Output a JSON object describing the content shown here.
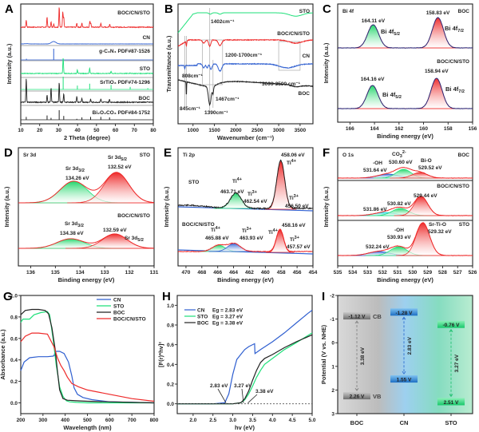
{
  "figure": {
    "panels": [
      "A",
      "B",
      "C",
      "D",
      "E",
      "F",
      "G",
      "H",
      "I"
    ]
  },
  "colors": {
    "red": "#ee2a2a",
    "blue": "#2f5fd0",
    "green": "#1fe07a",
    "black": "#222222",
    "gray": "#9a9a9a"
  },
  "chart_data": [
    {
      "panel": "A",
      "type": "line",
      "title": "",
      "xlabel": "2 Theta (degree)",
      "ylabel": "Intensity (a.u.)",
      "xlim": [
        10,
        80
      ],
      "xticks": [
        "10",
        "20",
        "30",
        "40",
        "50",
        "60",
        "70",
        "80"
      ],
      "series": [
        {
          "name": "BOC/CN/STO",
          "color": "#ee2a2a",
          "peaks": [
            [
              12.9,
              0.35
            ],
            [
              23.9,
              0.5
            ],
            [
              26.0,
              0.25
            ],
            [
              27.4,
              0.15
            ],
            [
              30.3,
              1.0
            ],
            [
              32.2,
              0.75
            ],
            [
              32.7,
              0.5
            ],
            [
              39.6,
              0.2
            ],
            [
              42.3,
              0.2
            ],
            [
              46.5,
              0.3
            ],
            [
              47.0,
              0.2
            ],
            [
              52.3,
              0.2
            ],
            [
              57.0,
              0.15
            ]
          ]
        },
        {
          "name": "CN",
          "color": "#2f5fd0",
          "peaks": [
            [
              27.4,
              0.5
            ],
            [
              13.1,
              0.05
            ]
          ]
        },
        {
          "name": "g-C3N4 PDF#87-1526",
          "color": "#2f5fd0",
          "sticks": [
            [
              13.0,
              0.1
            ],
            [
              27.4,
              1.0
            ]
          ]
        },
        {
          "name": "STO",
          "color": "#1fe07a",
          "peaks": [
            [
              32.4,
              1.0
            ],
            [
              39.9,
              0.25
            ],
            [
              46.4,
              0.35
            ],
            [
              57.7,
              0.15
            ],
            [
              67.8,
              0.05
            ],
            [
              77.1,
              0.03
            ]
          ]
        },
        {
          "name": "SrTiO3 PDF#74-1296",
          "color": "#1fe07a",
          "sticks": [
            [
              32.4,
              1.0
            ],
            [
              39.9,
              0.3
            ],
            [
              46.4,
              0.45
            ],
            [
              57.7,
              0.35
            ],
            [
              67.8,
              0.2
            ],
            [
              77.1,
              0.1
            ]
          ]
        },
        {
          "name": "BOC",
          "color": "#222222",
          "peaks": [
            [
              12.9,
              1.0
            ],
            [
              23.9,
              0.3
            ],
            [
              26.0,
              0.6
            ],
            [
              30.3,
              0.85
            ],
            [
              32.7,
              0.35
            ],
            [
              39.6,
              0.25
            ],
            [
              42.3,
              0.15
            ],
            [
              46.9,
              0.12
            ],
            [
              52.3,
              0.15
            ],
            [
              56.9,
              0.12
            ]
          ]
        },
        {
          "name": "Bi2O2CO3 PDF#84-1752",
          "color": "#222222",
          "sticks": [
            [
              12.9,
              0.3
            ],
            [
              23.9,
              0.45
            ],
            [
              26.0,
              0.2
            ],
            [
              30.3,
              1.0
            ],
            [
              32.7,
              0.4
            ],
            [
              39.6,
              0.1
            ],
            [
              42.3,
              0.25
            ],
            [
              46.9,
              0.3
            ],
            [
              52.3,
              0.3
            ],
            [
              56.9,
              0.25
            ]
          ]
        }
      ],
      "labels": {
        "boc_cn_sto": "BOC/CN/STO",
        "cn": "CN",
        "gc3n4_pdf": "g-C₃N₄ PDF#87-1526",
        "sto": "STO",
        "srtio3_pdf": "SrTiO₃ PDF#74-1296",
        "boc": "BOC",
        "bi2o2co3_pdf": "Bi₂O₂CO₃ PDF#84-1752"
      }
    },
    {
      "panel": "B",
      "type": "line",
      "xlabel": "Wavenumber (cm⁻¹)",
      "ylabel": "Transmittance (a.u.)",
      "xlim": [
        650,
        3800
      ],
      "xticks": [
        "1000",
        "1500",
        "2000",
        "2500",
        "3000",
        "3500"
      ],
      "xtick_values": [
        1000,
        1500,
        2000,
        2500,
        3000,
        3500
      ],
      "series": [
        {
          "name": "STO",
          "color": "#1fe07a"
        },
        {
          "name": "BOC/CN/STO",
          "color": "#ee2a2a"
        },
        {
          "name": "CN",
          "color": "#2f5fd0"
        },
        {
          "name": "BOC",
          "color": "#222222"
        }
      ],
      "annotations": {
        "a1402": "1402cm⁻¹",
        "a1200_1700": "1200-1700cm⁻¹",
        "a808": "808cm⁻¹",
        "a3000_3500": "3000-3500 cm⁻¹",
        "a1467": "1467cm⁻¹",
        "a845": "845cm⁻¹",
        "a1390": "1390cm⁻¹"
      }
    },
    {
      "panel": "C",
      "type": "line",
      "title": "Bi 4f",
      "xlabel": "Binding energy (eV)",
      "ylabel": "Intensity (a.u.)",
      "xlim": [
        167,
        156
      ],
      "xticks": [
        "166",
        "164",
        "162",
        "160",
        "158",
        "156"
      ],
      "xtick_values": [
        166,
        164,
        162,
        160,
        158,
        156
      ],
      "samples": [
        {
          "name": "BOC",
          "peaks": [
            {
              "label": "Bi 4f5/2",
              "energy": 164.11,
              "text": "164.11 eV",
              "fill": "green"
            },
            {
              "label": "Bi 4f7/2",
              "energy": 158.83,
              "text": "158.83 eV",
              "fill": "red"
            }
          ]
        },
        {
          "name": "BOC/CN/STO",
          "peaks": [
            {
              "label": "Bi 4f5/2",
              "energy": 164.16,
              "text": "164.16 eV",
              "fill": "green"
            },
            {
              "label": "Bi 4f7/2",
              "energy": 158.94,
              "text": "158.94 eV",
              "fill": "red"
            }
          ]
        }
      ]
    },
    {
      "panel": "D",
      "type": "line",
      "title": "Sr 3d",
      "xlabel": "Binding energy (eV)",
      "ylabel": "Intensity (a.u.)",
      "xlim": [
        136.5,
        131
      ],
      "xticks": [
        "136",
        "135",
        "134",
        "133",
        "132",
        "131"
      ],
      "xtick_values": [
        136,
        135,
        134,
        133,
        132,
        131
      ],
      "samples": [
        {
          "name": "STO",
          "peaks": [
            {
              "label": "Sr 3d3/2",
              "energy": 134.26,
              "text": "134.26 eV",
              "fill": "green"
            },
            {
              "label": "Sr 3d5/2",
              "energy": 132.52,
              "text": "132.52 eV",
              "fill": "red"
            }
          ]
        },
        {
          "name": "BOC/CN/STO",
          "peaks": [
            {
              "label": "Sr 3d3/2",
              "energy": 134.38,
              "text": "134.38 eV",
              "fill": "green"
            },
            {
              "label": "Sr 3d5/2",
              "energy": 132.59,
              "text": "132.59 eV",
              "fill": "red"
            }
          ]
        }
      ]
    },
    {
      "panel": "E",
      "type": "line",
      "title": "Ti 2p",
      "xlabel": "Binding energy (eV)",
      "ylabel": "Intensity (a.u.)",
      "xlim": [
        471,
        454
      ],
      "xticks": [
        "470",
        "468",
        "466",
        "464",
        "462",
        "460",
        "458",
        "456",
        "454"
      ],
      "xtick_values": [
        470,
        468,
        466,
        464,
        462,
        460,
        458,
        456,
        454
      ],
      "samples": [
        {
          "name": "STO",
          "peaks": [
            {
              "label": "Ti4+",
              "energy": 463.71,
              "text": "463.71 eV"
            },
            {
              "label": "Ti3+",
              "energy": 462.54,
              "text": "462.54 eV"
            },
            {
              "label": "Ti4+",
              "energy": 458.06,
              "text": "458.06 eV"
            },
            {
              "label": "Ti3+",
              "energy": 456.5,
              "text": "456.50 eV"
            }
          ]
        },
        {
          "name": "BOC/CN/STO",
          "peaks": [
            {
              "label": "Ti4+",
              "energy": 465.88,
              "text": "465.88 eV"
            },
            {
              "label": "Ti3+",
              "energy": 463.93,
              "text": "463.93 eV"
            },
            {
              "label": "Ti4+",
              "energy": 458.16,
              "text": "458.16 eV"
            },
            {
              "label": "Ti3+",
              "energy": 457.57,
              "text": "457.57 eV"
            }
          ]
        }
      ]
    },
    {
      "panel": "F",
      "type": "line",
      "title": "O 1s",
      "xlabel": "Binding energy (eV)",
      "ylabel": "Intensity (a.u.)",
      "xlim": [
        535,
        526
      ],
      "xticks": [
        "535",
        "534",
        "533",
        "532",
        "531",
        "530",
        "529",
        "528",
        "527",
        "526"
      ],
      "xtick_values": [
        535,
        534,
        533,
        532,
        531,
        530,
        529,
        528,
        527,
        526
      ],
      "samples": [
        {
          "name": "BOC",
          "peaks": [
            {
              "label": "-OH",
              "energy": 531.64,
              "text": "531.64 eV"
            },
            {
              "label": "CO3 2-",
              "energy": 530.6,
              "text": "530.60 eV"
            },
            {
              "label": "Bi-O",
              "energy": 529.52,
              "text": "529.52 eV"
            }
          ]
        },
        {
          "name": "BOC/CN/STO",
          "peaks": [
            {
              "label": "",
              "energy": 531.86,
              "text": "531.86 eV"
            },
            {
              "label": "",
              "energy": 530.82,
              "text": "530.82 eV"
            },
            {
              "label": "",
              "energy": 529.44,
              "text": "529.44 eV"
            }
          ]
        },
        {
          "name": "STO",
          "peaks": [
            {
              "label": "",
              "energy": 532.24,
              "text": "532.24 eV"
            },
            {
              "label": "-OH",
              "energy": 530.93,
              "text": "530.93 eV"
            },
            {
              "label": "Sr-Ti-O",
              "energy": 529.32,
              "text": "529.32 eV"
            }
          ]
        }
      ]
    },
    {
      "panel": "G",
      "type": "line",
      "xlabel": "Wavelength (nm)",
      "ylabel": "Absorbance (a.u.)",
      "xlim": [
        200,
        800
      ],
      "ylim": [
        -0.1,
        1.0
      ],
      "xticks": [
        "200",
        "300",
        "400",
        "500",
        "600",
        "700",
        "800"
      ],
      "xtick_values": [
        200,
        300,
        400,
        500,
        600,
        700,
        800
      ],
      "yticks": [
        "0.0",
        "0.2",
        "0.4",
        "0.6",
        "0.8",
        "1.0"
      ],
      "ytick_values": [
        0,
        0.2,
        0.4,
        0.6,
        0.8,
        1.0
      ],
      "series": [
        {
          "name": "CN",
          "color": "#2f5fd0",
          "x": [
            200,
            215,
            240,
            280,
            320,
            345,
            350,
            355,
            375,
            395,
            415,
            430,
            440,
            455,
            480,
            520,
            600,
            700,
            800
          ],
          "y": [
            0.3,
            0.38,
            0.42,
            0.43,
            0.43,
            0.435,
            0.44,
            0.48,
            0.48,
            0.46,
            0.38,
            0.25,
            0.14,
            0.08,
            0.05,
            0.03,
            0.01,
            0.005,
            0.0
          ]
        },
        {
          "name": "STO",
          "color": "#1fe07a",
          "x": [
            200,
            210,
            240,
            260,
            290,
            320,
            330,
            345,
            360,
            375,
            390,
            405,
            420,
            450,
            500,
            600,
            700,
            800
          ],
          "y": [
            0.75,
            0.78,
            0.78,
            0.82,
            0.84,
            0.85,
            0.82,
            0.6,
            0.35,
            0.15,
            0.06,
            0.02,
            0.01,
            0.005,
            0.0,
            0.0,
            0.0,
            0.0
          ]
        },
        {
          "name": "BOC",
          "color": "#222222",
          "x": [
            200,
            220,
            250,
            280,
            310,
            325,
            340,
            355,
            365,
            375,
            390,
            410,
            450,
            500,
            600,
            700,
            800
          ],
          "y": [
            0.82,
            0.86,
            0.87,
            0.87,
            0.86,
            0.83,
            0.7,
            0.5,
            0.3,
            0.12,
            0.04,
            0.025,
            0.02,
            0.015,
            0.01,
            0.005,
            0.0
          ]
        },
        {
          "name": "BOC/CN/STO",
          "color": "#ee2a2a",
          "x": [
            200,
            220,
            250,
            280,
            320,
            335,
            350,
            365,
            380,
            395,
            410,
            430,
            460,
            500,
            600,
            700,
            800
          ],
          "y": [
            0.57,
            0.62,
            0.65,
            0.65,
            0.64,
            0.58,
            0.52,
            0.42,
            0.35,
            0.3,
            0.24,
            0.18,
            0.15,
            0.12,
            0.08,
            0.04,
            0.015
          ]
        }
      ]
    },
    {
      "panel": "H",
      "type": "line",
      "xlabel": "hv (eV)",
      "ylabel": "[F(r)*hv]²",
      "xlim": [
        1.6,
        5.0
      ],
      "ylim": [
        -0.1,
        1.1
      ],
      "xticks": [
        "2.0",
        "2.5",
        "3.0",
        "3.5",
        "4.0",
        "4.5",
        "5.0"
      ],
      "xtick_values": [
        2.0,
        2.5,
        3.0,
        3.5,
        4.0,
        4.5,
        5.0
      ],
      "yticks": [
        "0.0",
        "0.2",
        "0.4",
        "0.6",
        "0.8",
        "1.0"
      ],
      "ytick_values": [
        0,
        0.2,
        0.4,
        0.6,
        0.8,
        1.0
      ],
      "series": [
        {
          "name": "CN",
          "legend": "Eg = 2.83 eV",
          "color": "#2f5fd0",
          "x": [
            1.6,
            2.5,
            2.8,
            2.9,
            3.0,
            3.1,
            3.2,
            3.3,
            3.4,
            3.55,
            3.56,
            3.7,
            4.0,
            4.3,
            4.6,
            4.9,
            5.0
          ],
          "y": [
            0.0,
            0.0,
            0.01,
            0.1,
            0.3,
            0.45,
            0.5,
            0.55,
            0.58,
            0.61,
            0.51,
            0.55,
            0.63,
            0.72,
            0.82,
            0.92,
            0.95
          ]
        },
        {
          "name": "STO",
          "legend": "Eg = 3.27 eV",
          "color": "#1fe07a",
          "x": [
            1.6,
            3.0,
            3.2,
            3.3,
            3.4,
            3.5,
            3.6,
            3.7,
            3.8,
            4.0,
            4.3,
            4.6,
            5.0
          ],
          "y": [
            0.0,
            0.0,
            0.01,
            0.04,
            0.1,
            0.18,
            0.27,
            0.34,
            0.4,
            0.46,
            0.55,
            0.62,
            0.72
          ]
        },
        {
          "name": "BOC",
          "legend": "Eg = 3.38 eV",
          "color": "#222222",
          "x": [
            1.6,
            3.0,
            3.2,
            3.3,
            3.4,
            3.5,
            3.6,
            3.7,
            3.8,
            4.0,
            4.3,
            4.6,
            5.0
          ],
          "y": [
            0.0,
            0.0,
            0.01,
            0.05,
            0.13,
            0.24,
            0.34,
            0.42,
            0.46,
            0.5,
            0.57,
            0.63,
            0.7
          ]
        }
      ],
      "annotations": [
        {
          "text": "2.83 eV",
          "x": 2.83
        },
        {
          "text": "3.27 eV",
          "x": 3.27
        },
        {
          "text": "3.38 eV",
          "x": 3.38
        }
      ]
    },
    {
      "panel": "I",
      "type": "bar",
      "ylabel": "Potential (V vs. NHE)",
      "ylim": [
        -2,
        3
      ],
      "yticks": [
        "-2",
        "-1",
        "0",
        "1",
        "2",
        "3"
      ],
      "ytick_values": [
        -2,
        -1,
        0,
        1,
        2,
        3
      ],
      "categories": [
        "BOC",
        "CN",
        "STO"
      ],
      "series": [
        {
          "name": "CB",
          "values": [
            -1.12,
            -1.28,
            -0.76
          ],
          "labels": [
            "-1.12 V",
            "-1.28 V",
            "-0.76 V"
          ]
        },
        {
          "name": "VB",
          "values": [
            2.26,
            1.55,
            2.51
          ],
          "labels": [
            "2.26 V",
            "1.55 V",
            "2.51 V"
          ]
        }
      ],
      "band_gaps": [
        "3.38 eV",
        "2.83 eV",
        "3.27 eV"
      ],
      "band_labels": {
        "cb": "CB",
        "vb": "VB"
      }
    }
  ]
}
